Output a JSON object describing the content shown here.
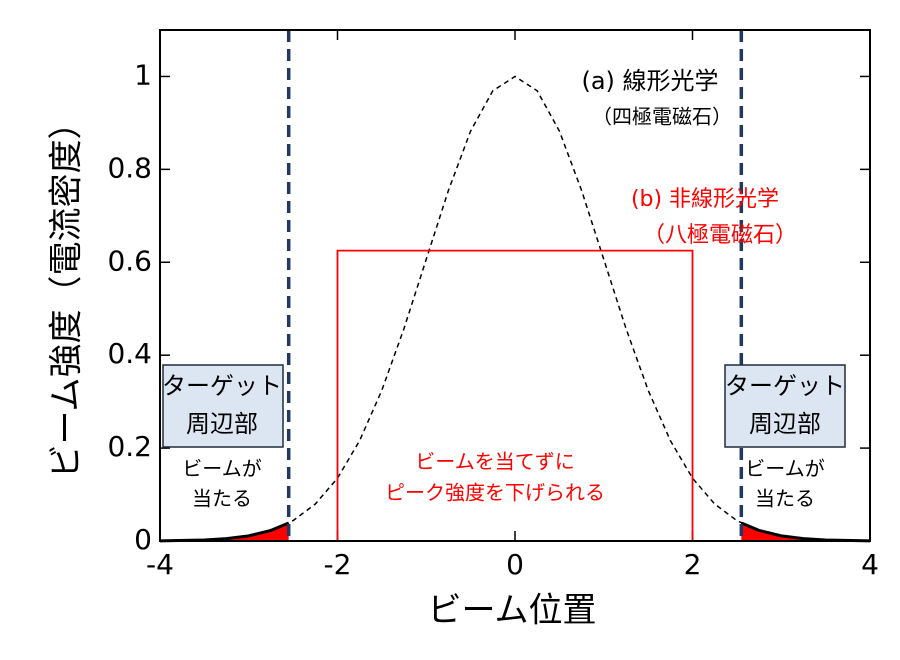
{
  "chart_data": {
    "type": "line",
    "xlabel": "ビーム位置",
    "ylabel": "ビーム強度（電流密度）",
    "xlim": [
      -4,
      4
    ],
    "ylim": [
      0,
      1.1
    ],
    "xticks": [
      -4,
      -2,
      0,
      2,
      4
    ],
    "yticks": [
      0,
      0.2,
      0.4,
      0.6,
      0.8,
      1
    ],
    "series": [
      {
        "style": "dashed",
        "color": "#000000",
        "x": [
          -4,
          -3.75,
          -3.5,
          -3.25,
          -3,
          -2.75,
          -2.5,
          -2.25,
          -2,
          -1.75,
          -1.5,
          -1.25,
          -1,
          -0.75,
          -0.5,
          -0.25,
          0,
          0.25,
          0.5,
          0.75,
          1,
          1.25,
          1.5,
          1.75,
          2,
          2.25,
          2.5,
          2.75,
          3,
          3.25,
          3.5,
          3.75,
          4
        ],
        "values": [
          0.0003,
          0.0009,
          0.0022,
          0.0051,
          0.0111,
          0.0228,
          0.0439,
          0.0796,
          0.1353,
          0.2163,
          0.3247,
          0.4578,
          0.6065,
          0.7548,
          0.8825,
          0.9692,
          1,
          0.9692,
          0.8825,
          0.7548,
          0.6065,
          0.4578,
          0.3247,
          0.2163,
          0.1353,
          0.0796,
          0.0439,
          0.0228,
          0.0111,
          0.0051,
          0.0022,
          0.0009,
          0.0003
        ]
      },
      {
        "style": "solid",
        "color": "#ff0000",
        "x": [
          -2,
          -2,
          2,
          2
        ],
        "values": [
          0,
          0.625,
          0.625,
          0
        ]
      },
      {
        "style": "area",
        "color": "#ff0000",
        "edge": "#000000",
        "x": [
          -4,
          -3.5,
          -3.25,
          -3,
          -2.75,
          -2.55
        ],
        "values": [
          0.0003,
          0.0022,
          0.0051,
          0.0111,
          0.0228,
          0.0387
        ]
      },
      {
        "style": "area",
        "color": "#ff0000",
        "edge": "#000000",
        "x": [
          2.55,
          2.75,
          3,
          3.25,
          3.5,
          4
        ],
        "values": [
          0.0387,
          0.0228,
          0.0111,
          0.0051,
          0.0022,
          0.0003
        ]
      }
    ],
    "vlines": [
      {
        "value": -2.55,
        "color": "#1f3864"
      },
      {
        "value": 2.55,
        "color": "#1f3864"
      }
    ],
    "annotations": [
      {
        "text": "(a) 線形光学",
        "color": "#000000"
      },
      {
        "text": "（四極電磁石）",
        "color": "#000000"
      },
      {
        "text": "(b) 非線形光学",
        "color": "#ff0000"
      },
      {
        "text": "（八極電磁石）",
        "color": "#ff0000"
      },
      {
        "text": "ビームを当てずに",
        "color": "#ff0000"
      },
      {
        "text": "ピーク強度を下げられる",
        "color": "#ff0000"
      },
      {
        "text": "ビームが",
        "color": "#000000"
      },
      {
        "text": "当たる",
        "color": "#000000"
      },
      {
        "text": "ビームが",
        "color": "#000000"
      },
      {
        "text": "当たる",
        "color": "#000000"
      }
    ],
    "boxes": [
      {
        "lines": [
          "ターゲット",
          "周辺部"
        ],
        "fill": "#dce6f2"
      },
      {
        "lines": [
          "ターゲット",
          "周辺部"
        ],
        "fill": "#dce6f2"
      }
    ]
  }
}
